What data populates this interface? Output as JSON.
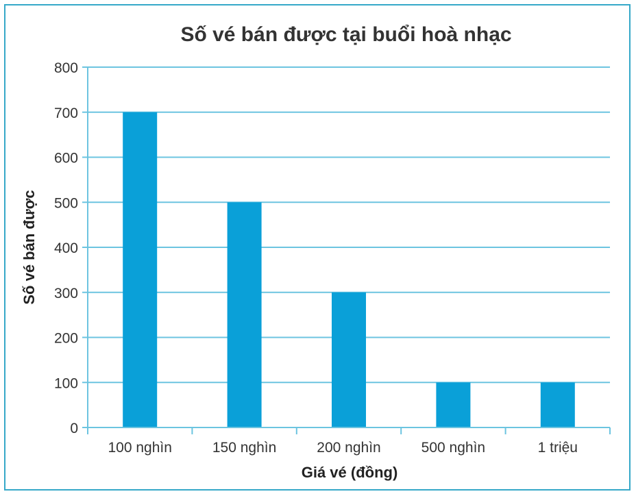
{
  "chart_data": {
    "type": "bar",
    "title": "Số vé bán được tại buổi hoà nhạc",
    "xlabel": "Giá vé (đồng)",
    "ylabel": "Số vé bán được",
    "categories": [
      "100 nghìn",
      "150 nghìn",
      "200 nghìn",
      "500 nghìn",
      "1 triệu"
    ],
    "values": [
      700,
      500,
      300,
      100,
      100
    ],
    "ylim": [
      0,
      800
    ],
    "yticks": [
      0,
      100,
      200,
      300,
      400,
      500,
      600,
      700,
      800
    ],
    "grid": true,
    "legend": "none"
  },
  "colors": {
    "bar": "#0aa0d8",
    "grid": "#6cc4e0",
    "border": "#35a8c8"
  }
}
